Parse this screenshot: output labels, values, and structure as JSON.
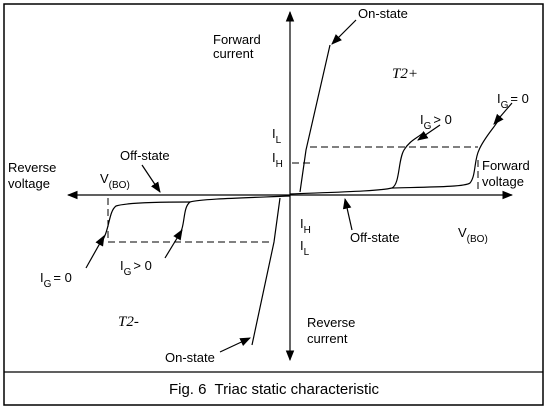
{
  "labels": {
    "forward_current": [
      "Forward",
      "current"
    ],
    "reverse_current": [
      "Reverse",
      "current"
    ],
    "reverse_voltage": [
      "Reverse",
      "voltage"
    ],
    "forward_voltage": [
      "Forward",
      "voltage"
    ],
    "on_state_top": "On-state",
    "on_state_bottom": "On-state",
    "off_state_left": "Off-state",
    "off_state_right": "Off-state",
    "t2_plus": "T2+",
    "t2_minus": "T2-",
    "vbo_left": {
      "main": "V",
      "sub": "(BO)"
    },
    "vbo_right": {
      "main": "V",
      "sub": "(BO)"
    },
    "il_top": {
      "main": "I",
      "sub": "L"
    },
    "ih_top": {
      "main": "I",
      "sub": "H"
    },
    "ih_bottom": {
      "main": "I",
      "sub": "H"
    },
    "il_bottom": {
      "main": "I",
      "sub": "L"
    },
    "ig_pos_top": {
      "main": "I",
      "sub": "G",
      "rest": "> 0"
    },
    "ig_zero_top": {
      "main": "I",
      "sub": "G",
      "rest": "= 0"
    },
    "ig_zero_bottom": {
      "main": "I",
      "sub": "G",
      "rest": "= 0"
    },
    "ig_pos_bottom": {
      "main": "I",
      "sub": "G",
      "rest": "> 0"
    }
  },
  "caption": "Fig. 6  Triac static characteristic"
}
